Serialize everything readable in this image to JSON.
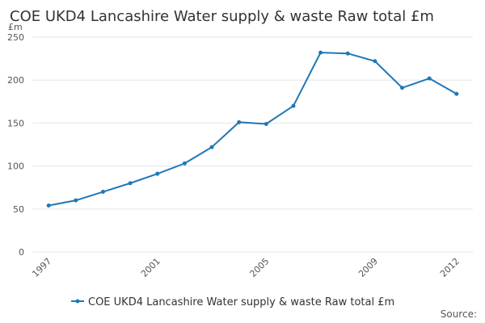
{
  "chart_data": {
    "type": "line",
    "title": "COE UKD4 Lancashire Water supply & waste Raw total £m",
    "ylabel": "£m",
    "ylim": [
      0,
      250
    ],
    "yticks": [
      0,
      50,
      100,
      150,
      200,
      250
    ],
    "x": [
      1997,
      1998,
      1999,
      2000,
      2001,
      2002,
      2003,
      2004,
      2005,
      2006,
      2007,
      2008,
      2009,
      2010,
      2011,
      2012
    ],
    "xtick_labels": [
      "1997",
      "2001",
      "2005",
      "2009",
      "2012"
    ],
    "series": [
      {
        "name": "COE UKD4 Lancashire Water supply & waste Raw total £m",
        "color": "#1f78b4",
        "values": [
          54,
          60,
          70,
          80,
          91,
          103,
          122,
          151,
          149,
          170,
          232,
          231,
          222,
          191,
          202,
          184
        ]
      }
    ],
    "grid": true,
    "legend": "bottom-center"
  },
  "footer": {
    "source_label": "Source:"
  }
}
